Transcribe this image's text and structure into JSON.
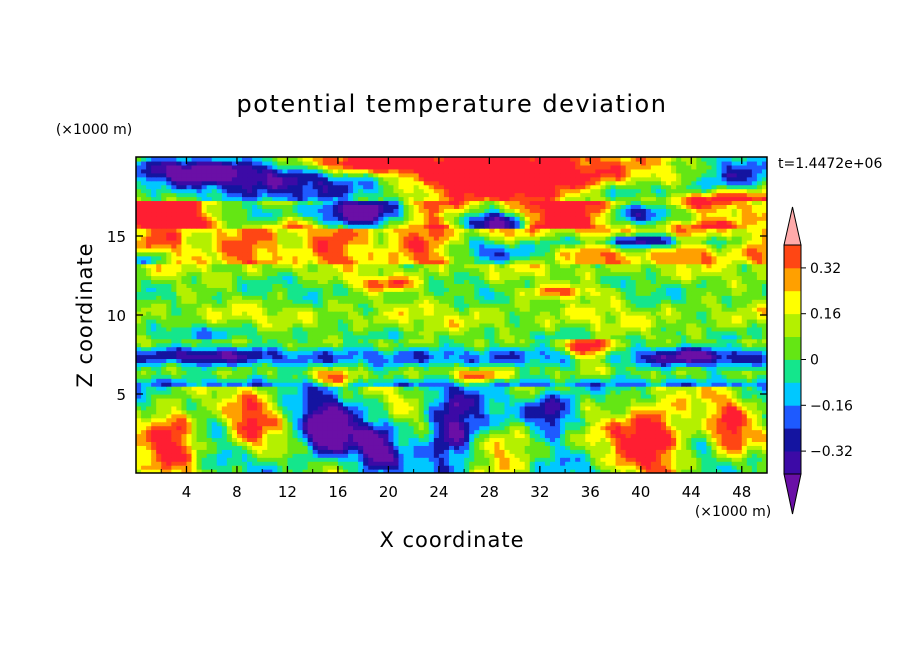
{
  "chart_data": {
    "type": "heatmap",
    "title": "potential temperature deviation",
    "xlabel": "X coordinate",
    "ylabel": "Z coordinate",
    "x_units": "(×1000 m)",
    "y_units": "(×1000 m)",
    "time_label": "t=1.4472e+06",
    "xlim": [
      0,
      50
    ],
    "ylim": [
      0,
      20
    ],
    "x_ticks": [
      4,
      8,
      12,
      16,
      20,
      24,
      28,
      32,
      36,
      40,
      44,
      48
    ],
    "y_ticks": [
      5,
      10,
      15
    ],
    "grid": false,
    "colorbar": {
      "levels": [
        -0.4,
        -0.32,
        -0.24,
        -0.16,
        -0.08,
        0,
        0.08,
        0.16,
        0.24,
        0.32,
        0.4
      ],
      "tick_labels": [
        "0.32",
        "0.16",
        "0",
        "−0.16",
        "−0.32"
      ],
      "tick_values": [
        0.32,
        0.16,
        0,
        -0.16,
        -0.32
      ],
      "colors": [
        "#6a0fa6",
        "#3c0aa6",
        "#1414a0",
        "#1e5aff",
        "#00c8ff",
        "#14e68c",
        "#64e614",
        "#b4f000",
        "#ffff00",
        "#ffa000",
        "#ff4614",
        "#ff1e32",
        "#ffaaaa"
      ],
      "extend": "both"
    },
    "description_bands": [
      {
        "z_range": [
          17.5,
          20
        ],
        "dominant_value": "mixed (< -0.4 and > 0.4)"
      },
      {
        "z_range": [
          13,
          15
        ],
        "dominant_value": "0.16 to 0.4"
      },
      {
        "z_range": [
          8,
          13
        ],
        "dominant_value": "0 to 0.16"
      },
      {
        "z_range": [
          5.5,
          8
        ],
        "dominant_value": "-0.24 to 0"
      },
      {
        "z_range": [
          0,
          5.5
        ],
        "dominant_value": "mixed (-0.4 to 0.4)"
      }
    ]
  }
}
